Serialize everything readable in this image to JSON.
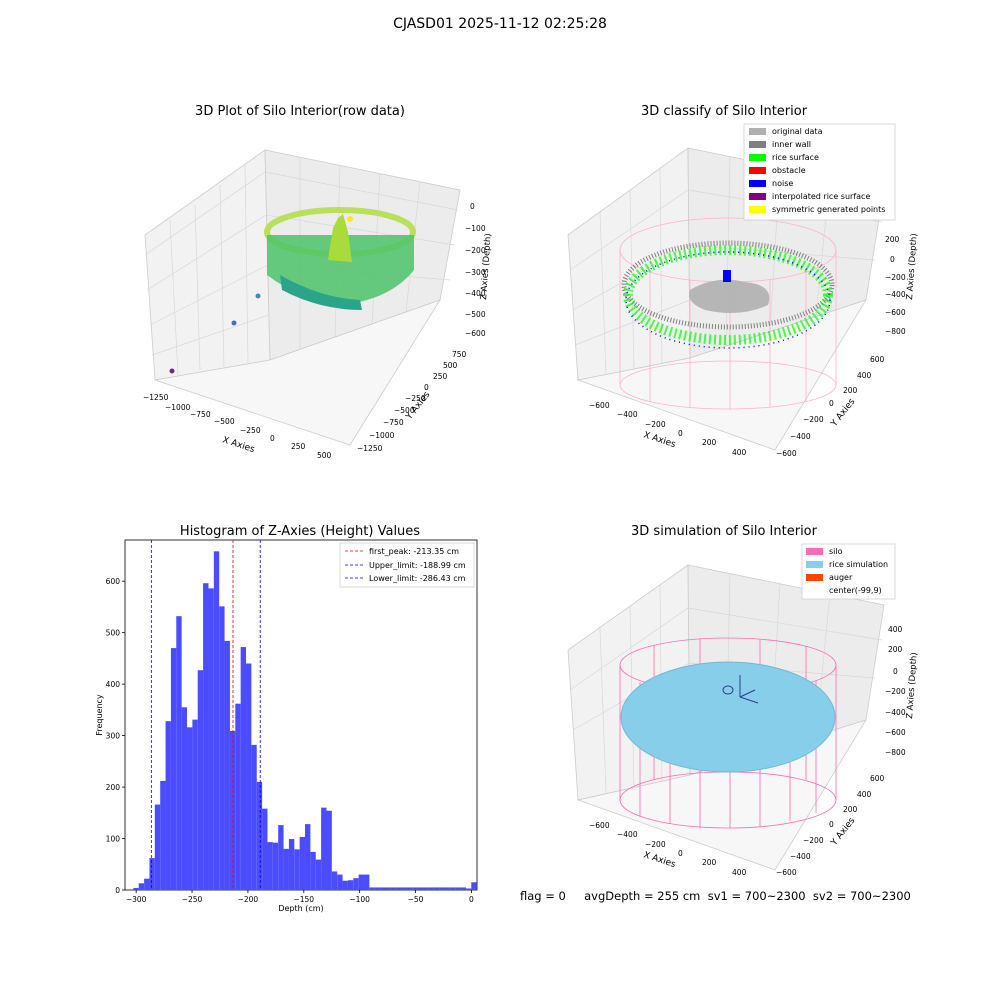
{
  "suptitle": "CJASD01 2025-11-12 02:25:28",
  "colors": {
    "hist_bar": "#4b4bff",
    "first_peak_line": "#ff0000",
    "limit_lines": "#0000cc",
    "silo": "#ff69b4",
    "rice_sim": "#87ceeb",
    "auger": "#ff4500",
    "rice_surface": "#00ff00",
    "inner_wall": "#808080",
    "original": "#b0b0b0",
    "obstacle": "#ff0000",
    "noise": "#0000ff",
    "interpolated": "#800080",
    "symmetric": "#ffff00"
  },
  "panel_raw": {
    "title": "3D Plot of Silo Interior(row data)",
    "xlabel": "X Axies",
    "ylabel": "Y Axies",
    "zlabel": "Z Axies (Depth)",
    "xticks": [
      "−1250",
      "−1000",
      "−750",
      "−500",
      "−250",
      "0",
      "250",
      "500"
    ],
    "yticks": [
      "750",
      "500",
      "250",
      "0",
      "−250",
      "−500",
      "−750",
      "−1000",
      "−1250"
    ],
    "zticks": [
      "0",
      "−100",
      "−200",
      "−300",
      "−400",
      "−500",
      "−600"
    ]
  },
  "panel_classify": {
    "title": "3D classify of Silo Interior",
    "xlabel": "X Axies",
    "ylabel": "Y Axies",
    "zlabel": "Z Axies (Depth)",
    "xticks": [
      "−600",
      "−400",
      "−200",
      "0",
      "200",
      "400"
    ],
    "yticks": [
      "600",
      "400",
      "200",
      "0",
      "−200",
      "−400",
      "−600"
    ],
    "zticks": [
      "200",
      "0",
      "−200",
      "−400",
      "−600",
      "−800"
    ],
    "legend": [
      {
        "label": "original data",
        "color": "#b0b0b0"
      },
      {
        "label": "inner wall",
        "color": "#808080"
      },
      {
        "label": "rice surface",
        "color": "#00ff00"
      },
      {
        "label": "obstacle",
        "color": "#ff0000"
      },
      {
        "label": "noise",
        "color": "#0000ff"
      },
      {
        "label": "interpolated rice surface",
        "color": "#800080"
      },
      {
        "label": "symmetric generated points",
        "color": "#ffff00"
      }
    ]
  },
  "panel_sim": {
    "title": "3D simulation of Silo Interior",
    "xlabel": "X Axies",
    "ylabel": "Y Axies",
    "zlabel": "Z Axies (Depth)",
    "xticks": [
      "−600",
      "−400",
      "−200",
      "0",
      "200",
      "400"
    ],
    "yticks": [
      "600",
      "400",
      "200",
      "0",
      "−200",
      "−400",
      "−600"
    ],
    "zticks": [
      "400",
      "200",
      "0",
      "−200",
      "−400",
      "−600",
      "−800"
    ],
    "legend": [
      {
        "label": "silo",
        "color": "#ff69b4"
      },
      {
        "label": "rice simulation",
        "color": "#87ceeb"
      },
      {
        "label": "auger",
        "color": "#ff4500"
      },
      {
        "label": "center(-99,9)",
        "color": ""
      }
    ]
  },
  "status_text": "flag = 0     avgDepth = 255 cm  sv1 = 700~2300  sv2 = 700~2300",
  "chart_data": {
    "type": "bar",
    "title": "Histogram of Z-Axies (Height) Values",
    "xlabel": "Depth (cm)",
    "ylabel": "Frequency",
    "xlim": [
      -310,
      5
    ],
    "ylim": [
      0,
      680
    ],
    "xticks": [
      -300,
      -250,
      -200,
      -150,
      -100,
      -50,
      0
    ],
    "xtick_labels": [
      "−300",
      "−250",
      "−200",
      "−150",
      "−100",
      "−50",
      "0"
    ],
    "yticks": [
      0,
      100,
      200,
      300,
      400,
      500,
      600
    ],
    "bin_width": 4.8,
    "bin_starts": [
      -302.5,
      -297.7,
      -292.9,
      -288.1,
      -283.3,
      -278.5,
      -273.7,
      -268.9,
      -264.1,
      -259.3,
      -254.5,
      -249.7,
      -244.9,
      -240.1,
      -235.3,
      -230.5,
      -225.7,
      -220.9,
      -216.1,
      -211.3,
      -206.5,
      -201.7,
      -196.9,
      -192.1,
      -187.3,
      -182.5,
      -177.7,
      -172.9,
      -168.1,
      -163.3,
      -158.5,
      -153.7,
      -148.9,
      -144.1,
      -139.3,
      -134.5,
      -129.7,
      -124.9,
      -120.1,
      -115.3,
      -110.5,
      -105.7,
      -100.9,
      -96.1,
      -91.3,
      -86.5,
      -81.7,
      -76.9,
      -72.1,
      -67.3,
      -62.5,
      -57.7,
      -52.9,
      -48.1,
      -43.3,
      -38.5,
      -33.7,
      -28.9,
      -24.1,
      -19.3,
      -14.5,
      -9.7,
      -4.9,
      -0.1
    ],
    "values": [
      4,
      13,
      22,
      62,
      166,
      212,
      328,
      470,
      532,
      355,
      316,
      331,
      427,
      596,
      586,
      658,
      551,
      484,
      309,
      362,
      472,
      440,
      282,
      210,
      158,
      93,
      92,
      126,
      80,
      99,
      79,
      103,
      128,
      74,
      59,
      160,
      154,
      36,
      30,
      18,
      19,
      23,
      30,
      30,
      5,
      5,
      5,
      5,
      5,
      5,
      5,
      5,
      5,
      5,
      5,
      5,
      5,
      5,
      5,
      5,
      5,
      5,
      3,
      15
    ],
    "vlines": [
      {
        "label": "first_peak: -213.35 cm",
        "x": -213.35,
        "color": "#ff0000"
      },
      {
        "label": "Upper_limit: -188.99 cm",
        "x": -188.99,
        "color": "#0000cc"
      },
      {
        "label": "Lower_limit: -286.43 cm",
        "x": -286.43,
        "color": "#0000cc"
      }
    ],
    "legend_position": "top-right"
  }
}
